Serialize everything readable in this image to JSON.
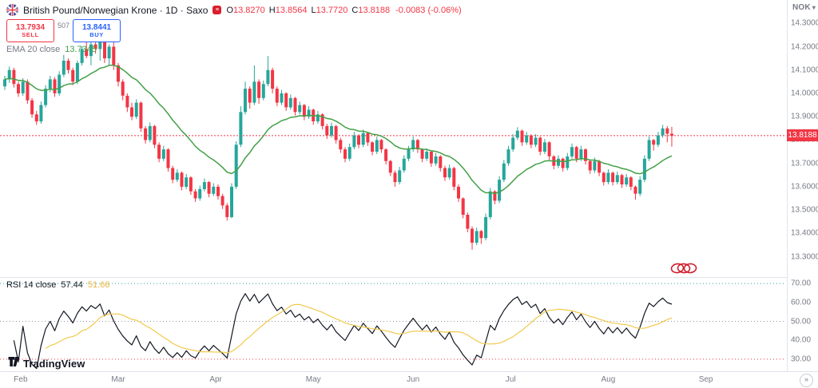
{
  "header": {
    "symbol_title": "British Pound/Norwegian Krone · 1D · Saxo",
    "ohlc": {
      "o_label": "O",
      "o": "13.8270",
      "h_label": "H",
      "h": "13.8564",
      "l_label": "L",
      "l": "13.7720",
      "c_label": "C",
      "c": "13.8188",
      "change": "-0.0083 (-0.06%)"
    }
  },
  "trade_panel": {
    "sell_price": "13.7934",
    "sell_label": "SELL",
    "spread": "507",
    "buy_price": "13.8441",
    "buy_label": "BUY"
  },
  "ema_legend": {
    "label": "EMA 20 close",
    "value": "13.7345"
  },
  "rsi_legend": {
    "label": "RSI 14 close",
    "value": "57.44",
    "ma_value": "51.66"
  },
  "price_axis": {
    "currency": "NOK",
    "current": "13.8188",
    "ticks": [
      "14.3000",
      "14.2000",
      "14.1000",
      "14.0000",
      "13.9000",
      "13.8000",
      "13.7000",
      "13.6000",
      "13.5000",
      "13.4000",
      "13.3000"
    ]
  },
  "rsi_axis": {
    "ticks": [
      "70.00",
      "60.00",
      "50.00",
      "40.00",
      "30.00"
    ]
  },
  "watermark": {
    "brand": "TradingView"
  },
  "icons": {
    "chevron_down": "▾",
    "double_chevron_right": "»",
    "provider_glyph": "≡"
  },
  "colors": {
    "up": "#26a69a",
    "down": "#f23645",
    "ema": "#43a047",
    "rsi": "#131722",
    "rsi_ma": "#f2c94c",
    "price_line": "#f23645",
    "level70": "#26a69a",
    "level50": "#9598a1",
    "level30": "#f23645",
    "annotation": "#d01f2e",
    "axis_text": "#787b86",
    "border": "#e0e3eb",
    "sell": "#f23645",
    "buy": "#2962ff"
  },
  "chart_data": {
    "type": "candlestick",
    "title": "British Pound/Norwegian Krone, 1D, Saxo",
    "currency": "NOK",
    "visible_price_range": [
      13.22,
      14.4
    ],
    "price_axis_ticks": [
      14.3,
      14.2,
      14.1,
      14.0,
      13.9,
      13.8,
      13.7,
      13.6,
      13.5,
      13.4,
      13.3
    ],
    "last": {
      "open": 13.827,
      "high": 13.8564,
      "low": 13.772,
      "close": 13.8188,
      "change": -0.0083,
      "change_pct": -0.06
    },
    "months": [
      {
        "label": "Feb",
        "index": 3.5
      },
      {
        "label": "Mar",
        "index": 25
      },
      {
        "label": "Apr",
        "index": 46.5
      },
      {
        "label": "May",
        "index": 68
      },
      {
        "label": "Jun",
        "index": 90
      },
      {
        "label": "Jul",
        "index": 111.5
      },
      {
        "label": "Aug",
        "index": 133
      },
      {
        "label": "Sep",
        "index": 154.5
      }
    ],
    "overlays": [
      {
        "name": "EMA",
        "period": 20,
        "last_value": 13.7345
      }
    ],
    "lower_pane": {
      "name": "RSI",
      "period": 14,
      "last_value": 57.44,
      "ma_last_value": 51.66,
      "axis_ticks": [
        70,
        60,
        50,
        40,
        30
      ],
      "visible_range": [
        27,
        73
      ],
      "levels": [
        70,
        50,
        30
      ]
    },
    "annotation": {
      "type": "hand-drawn-circles",
      "count": 3,
      "approx_price": 13.35
    },
    "candles": [
      [
        14.03,
        14.075,
        14.015,
        14.06
      ],
      [
        14.06,
        14.115,
        14.045,
        14.1
      ],
      [
        14.1,
        14.11,
        14.025,
        14.04
      ],
      [
        14.04,
        14.05,
        13.985,
        14.0
      ],
      [
        14.0,
        14.065,
        13.99,
        14.05
      ],
      [
        14.05,
        14.06,
        13.955,
        13.97
      ],
      [
        13.97,
        13.98,
        13.895,
        13.91
      ],
      [
        13.91,
        13.925,
        13.865,
        13.88
      ],
      [
        13.88,
        13.965,
        13.87,
        13.95
      ],
      [
        13.95,
        14.035,
        13.94,
        14.02
      ],
      [
        14.02,
        14.075,
        14.005,
        14.06
      ],
      [
        14.06,
        14.07,
        13.985,
        14.0
      ],
      [
        14.0,
        14.095,
        13.99,
        14.08
      ],
      [
        14.08,
        14.165,
        14.07,
        14.14
      ],
      [
        14.14,
        14.15,
        14.085,
        14.1
      ],
      [
        14.1,
        14.11,
        14.035,
        14.05
      ],
      [
        14.05,
        14.14,
        14.04,
        14.13
      ],
      [
        14.13,
        14.2,
        14.12,
        14.19
      ],
      [
        14.19,
        14.245,
        14.15,
        14.16
      ],
      [
        14.16,
        14.22,
        14.12,
        14.21
      ],
      [
        14.21,
        14.25,
        14.17,
        14.19
      ],
      [
        14.19,
        14.255,
        14.14,
        14.23
      ],
      [
        14.23,
        14.245,
        14.13,
        14.15
      ],
      [
        14.15,
        14.21,
        14.12,
        14.2
      ],
      [
        14.2,
        14.25,
        14.1,
        14.12
      ],
      [
        14.12,
        14.13,
        14.03,
        14.05
      ],
      [
        14.05,
        14.06,
        13.97,
        13.99
      ],
      [
        13.99,
        14.0,
        13.92,
        13.94
      ],
      [
        13.94,
        13.96,
        13.885,
        13.9
      ],
      [
        13.9,
        13.975,
        13.89,
        13.96
      ],
      [
        13.96,
        13.965,
        13.835,
        13.85
      ],
      [
        13.85,
        13.86,
        13.785,
        13.8
      ],
      [
        13.8,
        13.875,
        13.79,
        13.86
      ],
      [
        13.86,
        13.865,
        13.765,
        13.78
      ],
      [
        13.78,
        13.79,
        13.705,
        13.72
      ],
      [
        13.72,
        13.775,
        13.71,
        13.76
      ],
      [
        13.76,
        13.765,
        13.665,
        13.68
      ],
      [
        13.68,
        13.69,
        13.615,
        13.63
      ],
      [
        13.63,
        13.675,
        13.62,
        13.66
      ],
      [
        13.66,
        13.665,
        13.585,
        13.6
      ],
      [
        13.6,
        13.655,
        13.59,
        13.64
      ],
      [
        13.64,
        13.645,
        13.565,
        13.58
      ],
      [
        13.58,
        13.59,
        13.535,
        13.55
      ],
      [
        13.55,
        13.605,
        13.54,
        13.59
      ],
      [
        13.59,
        13.635,
        13.58,
        13.62
      ],
      [
        13.62,
        13.625,
        13.555,
        13.57
      ],
      [
        13.57,
        13.615,
        13.56,
        13.6
      ],
      [
        13.6,
        13.61,
        13.545,
        13.56
      ],
      [
        13.56,
        13.57,
        13.505,
        13.52
      ],
      [
        13.52,
        13.53,
        13.455,
        13.47
      ],
      [
        13.47,
        13.615,
        13.465,
        13.6
      ],
      [
        13.6,
        13.795,
        13.59,
        13.78
      ],
      [
        13.78,
        13.945,
        13.77,
        13.92
      ],
      [
        13.92,
        14.05,
        13.91,
        14.02
      ],
      [
        14.02,
        14.03,
        13.935,
        13.96
      ],
      [
        13.96,
        14.12,
        13.95,
        14.05
      ],
      [
        14.05,
        14.06,
        13.955,
        13.98
      ],
      [
        13.98,
        14.055,
        13.97,
        14.04
      ],
      [
        14.04,
        14.16,
        14.03,
        14.1
      ],
      [
        14.1,
        14.11,
        14.0,
        14.02
      ],
      [
        14.02,
        14.03,
        13.945,
        13.96
      ],
      [
        13.96,
        14.015,
        13.95,
        14.0
      ],
      [
        14.0,
        14.005,
        13.925,
        13.94
      ],
      [
        13.94,
        13.995,
        13.93,
        13.98
      ],
      [
        13.98,
        13.985,
        13.905,
        13.92
      ],
      [
        13.92,
        13.965,
        13.91,
        13.95
      ],
      [
        13.95,
        13.955,
        13.885,
        13.9
      ],
      [
        13.9,
        13.945,
        13.89,
        13.93
      ],
      [
        13.93,
        13.935,
        13.865,
        13.88
      ],
      [
        13.88,
        13.925,
        13.87,
        13.91
      ],
      [
        13.91,
        13.915,
        13.845,
        13.86
      ],
      [
        13.86,
        13.87,
        13.805,
        13.82
      ],
      [
        13.82,
        13.875,
        13.81,
        13.86
      ],
      [
        13.86,
        13.865,
        13.785,
        13.8
      ],
      [
        13.8,
        13.81,
        13.745,
        13.76
      ],
      [
        13.76,
        13.77,
        13.705,
        13.72
      ],
      [
        13.72,
        13.785,
        13.71,
        13.77
      ],
      [
        13.77,
        13.835,
        13.76,
        13.82
      ],
      [
        13.82,
        13.825,
        13.765,
        13.78
      ],
      [
        13.78,
        13.845,
        13.77,
        13.83
      ],
      [
        13.83,
        13.835,
        13.775,
        13.79
      ],
      [
        13.79,
        13.795,
        13.735,
        13.75
      ],
      [
        13.75,
        13.815,
        13.74,
        13.8
      ],
      [
        13.8,
        13.805,
        13.745,
        13.76
      ],
      [
        13.76,
        13.765,
        13.695,
        13.71
      ],
      [
        13.71,
        13.715,
        13.645,
        13.66
      ],
      [
        13.66,
        13.67,
        13.6,
        13.62
      ],
      [
        13.62,
        13.685,
        13.61,
        13.67
      ],
      [
        13.67,
        13.735,
        13.66,
        13.72
      ],
      [
        13.72,
        13.775,
        13.71,
        13.76
      ],
      [
        13.76,
        13.815,
        13.75,
        13.8
      ],
      [
        13.8,
        13.805,
        13.745,
        13.76
      ],
      [
        13.76,
        13.765,
        13.705,
        13.72
      ],
      [
        13.72,
        13.765,
        13.71,
        13.75
      ],
      [
        13.75,
        13.755,
        13.685,
        13.7
      ],
      [
        13.7,
        13.745,
        13.69,
        13.73
      ],
      [
        13.73,
        13.735,
        13.665,
        13.68
      ],
      [
        13.68,
        13.69,
        13.625,
        13.64
      ],
      [
        13.64,
        13.695,
        13.63,
        13.68
      ],
      [
        13.68,
        13.685,
        13.585,
        13.6
      ],
      [
        13.6,
        13.61,
        13.535,
        13.55
      ],
      [
        13.55,
        13.555,
        13.465,
        13.48
      ],
      [
        13.48,
        13.49,
        13.405,
        13.42
      ],
      [
        13.42,
        13.43,
        13.33,
        13.36
      ],
      [
        13.36,
        13.425,
        13.35,
        13.41
      ],
      [
        13.41,
        13.415,
        13.355,
        13.38
      ],
      [
        13.38,
        13.485,
        13.37,
        13.47
      ],
      [
        13.47,
        13.595,
        13.46,
        13.58
      ],
      [
        13.58,
        13.585,
        13.525,
        13.54
      ],
      [
        13.54,
        13.645,
        13.53,
        13.63
      ],
      [
        13.63,
        13.715,
        13.62,
        13.7
      ],
      [
        13.7,
        13.775,
        13.69,
        13.76
      ],
      [
        13.76,
        13.825,
        13.75,
        13.81
      ],
      [
        13.81,
        13.855,
        13.8,
        13.84
      ],
      [
        13.84,
        13.845,
        13.775,
        13.79
      ],
      [
        13.79,
        13.835,
        13.78,
        13.82
      ],
      [
        13.82,
        13.825,
        13.765,
        13.78
      ],
      [
        13.78,
        13.825,
        13.77,
        13.81
      ],
      [
        13.81,
        13.815,
        13.735,
        13.75
      ],
      [
        13.75,
        13.805,
        13.74,
        13.79
      ],
      [
        13.79,
        13.795,
        13.715,
        13.73
      ],
      [
        13.73,
        13.735,
        13.675,
        13.69
      ],
      [
        13.69,
        13.735,
        13.68,
        13.72
      ],
      [
        13.72,
        13.725,
        13.665,
        13.68
      ],
      [
        13.68,
        13.745,
        13.67,
        13.73
      ],
      [
        13.73,
        13.785,
        13.72,
        13.77
      ],
      [
        13.77,
        13.775,
        13.705,
        13.72
      ],
      [
        13.72,
        13.775,
        13.71,
        13.76
      ],
      [
        13.76,
        13.765,
        13.695,
        13.71
      ],
      [
        13.71,
        13.715,
        13.655,
        13.67
      ],
      [
        13.67,
        13.725,
        13.66,
        13.71
      ],
      [
        13.71,
        13.715,
        13.645,
        13.66
      ],
      [
        13.66,
        13.665,
        13.605,
        13.62
      ],
      [
        13.62,
        13.675,
        13.61,
        13.66
      ],
      [
        13.66,
        13.665,
        13.605,
        13.62
      ],
      [
        13.62,
        13.665,
        13.61,
        13.65
      ],
      [
        13.65,
        13.655,
        13.595,
        13.61
      ],
      [
        13.61,
        13.655,
        13.6,
        13.64
      ],
      [
        13.64,
        13.645,
        13.585,
        13.6
      ],
      [
        13.6,
        13.605,
        13.545,
        13.57
      ],
      [
        13.57,
        13.645,
        13.56,
        13.63
      ],
      [
        13.63,
        13.735,
        13.62,
        13.72
      ],
      [
        13.72,
        13.815,
        13.71,
        13.8
      ],
      [
        13.8,
        13.805,
        13.755,
        13.78
      ],
      [
        13.78,
        13.835,
        13.77,
        13.82
      ],
      [
        13.82,
        13.865,
        13.81,
        13.85
      ],
      [
        13.85,
        13.86,
        13.79,
        13.827
      ],
      [
        13.827,
        13.8564,
        13.772,
        13.8188
      ]
    ]
  }
}
